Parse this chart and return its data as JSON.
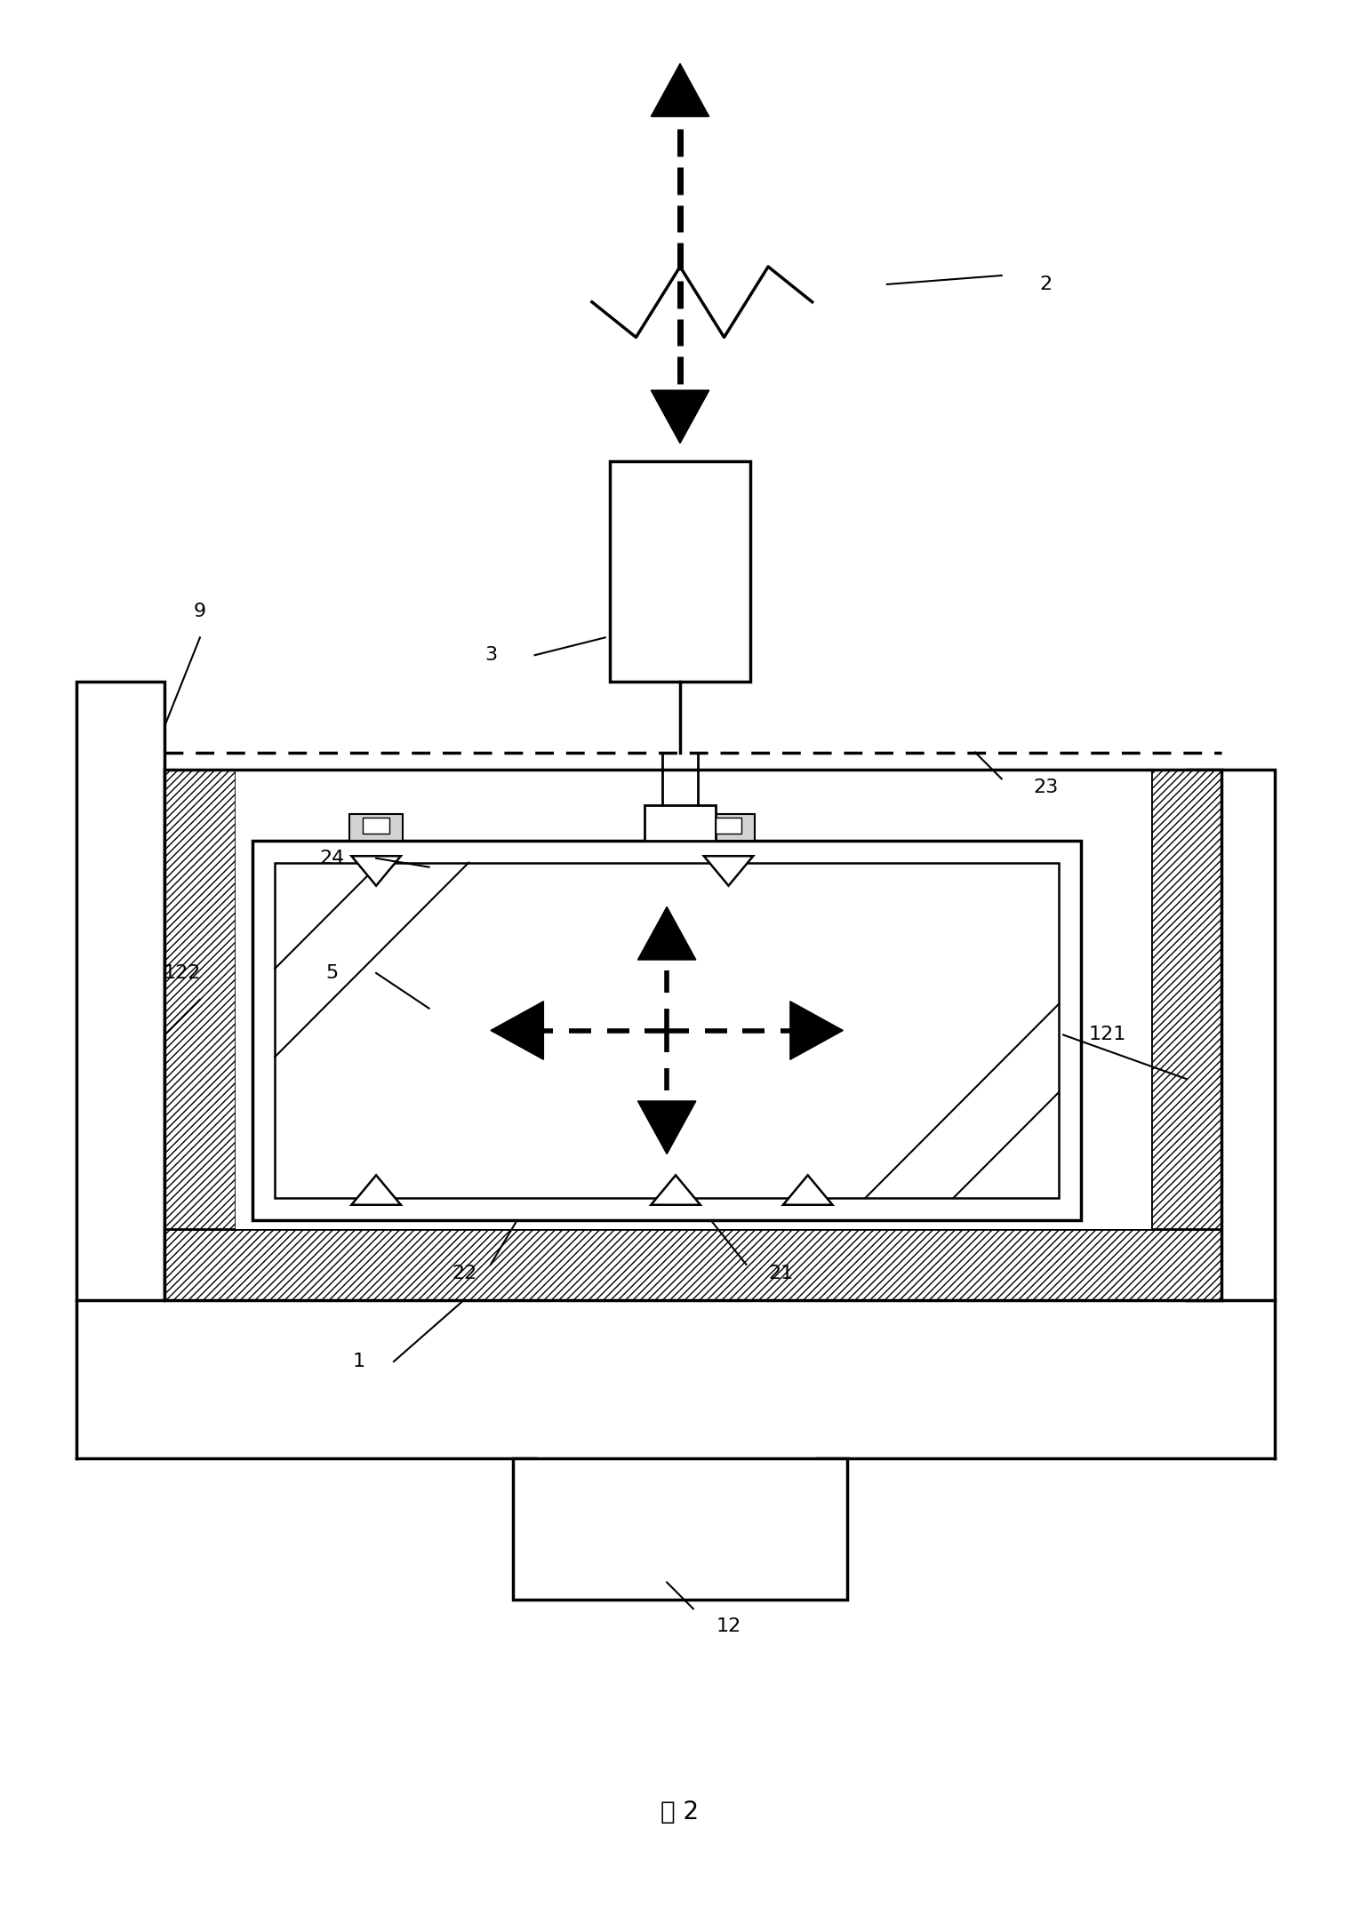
{
  "title": "图 2",
  "background_color": "#ffffff",
  "line_color": "#000000",
  "label_fontsize": 16,
  "title_fontsize": 20,
  "fig_w": 15.31,
  "fig_h": 21.65
}
